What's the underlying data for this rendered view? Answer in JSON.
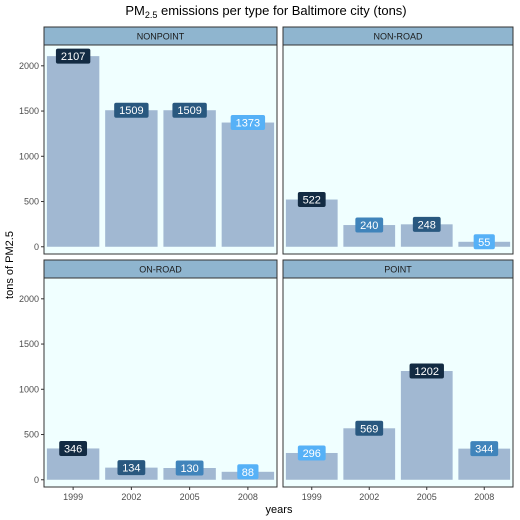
{
  "chart_data": {
    "type": "bar",
    "title": {
      "main": "PM",
      "subscript": "2.5",
      "rest": " emissions per type for Baltimore city (tons)"
    },
    "xlabel": "years",
    "ylabel": "tons of PM2.5",
    "categories": [
      "1999",
      "2002",
      "2005",
      "2008"
    ],
    "yticks": [
      0,
      500,
      1000,
      1500,
      2000
    ],
    "ylim": [
      -80,
      2230
    ],
    "grid": false,
    "legend": "none",
    "colors": {
      "panel_bg": "#f0ffff",
      "bar": "#a1b8d2",
      "strip_bg": "#8fb5cf",
      "border": "#333333",
      "label_low": "#132b43",
      "label_high": "#56b1f7"
    },
    "panels": [
      {
        "name": "NONPOINT",
        "values": [
          2107,
          1509,
          1509,
          1373
        ]
      },
      {
        "name": "NON-ROAD",
        "values": [
          522,
          240,
          248,
          55
        ]
      },
      {
        "name": "ON-ROAD",
        "values": [
          346,
          134,
          130,
          88
        ]
      },
      {
        "name": "POINT",
        "values": [
          296,
          569,
          1202,
          344
        ]
      }
    ]
  }
}
